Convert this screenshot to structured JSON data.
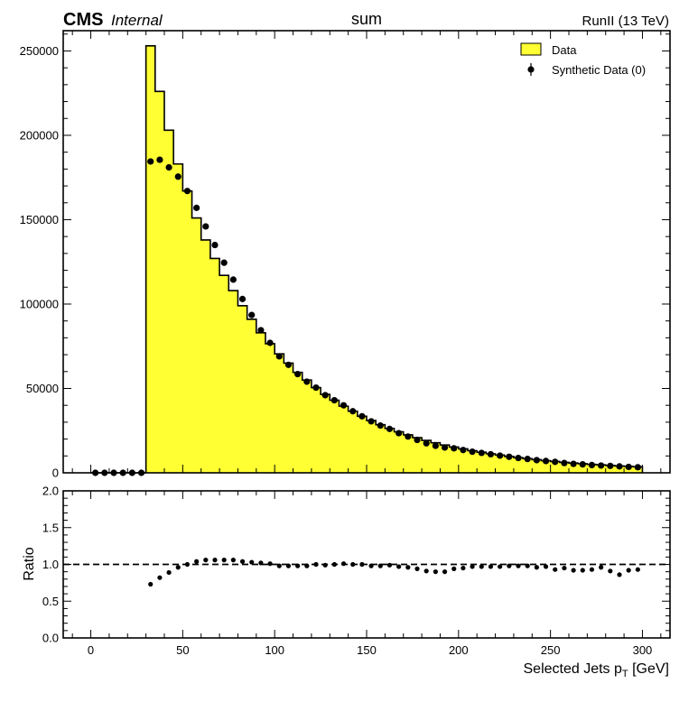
{
  "header": {
    "cms_label": "CMS",
    "cms_sublabel": "Internal",
    "title": "sum",
    "lumi_label": "RunII (13 TeV)"
  },
  "chart_data": {
    "type": "histogram",
    "bin_width": 5,
    "x_range": [
      -15,
      315
    ],
    "x_ticks": [
      0,
      50,
      100,
      150,
      200,
      250,
      300
    ],
    "xlabel_main": "Selected Jets p",
    "xlabel_sub": "T",
    "xlabel_unit": " [GeV]",
    "top_panel": {
      "ylim": [
        0,
        262000
      ],
      "y_ticks": [
        0,
        50000,
        100000,
        150000,
        200000,
        250000
      ],
      "series": [
        {
          "name": "Data",
          "style": "filled step histogram",
          "fill_color": "#ffff33",
          "edge_color": "#000000",
          "bin_low_edges": [
            0,
            5,
            10,
            15,
            20,
            25,
            30,
            35,
            40,
            45,
            50,
            55,
            60,
            65,
            70,
            75,
            80,
            85,
            90,
            95,
            100,
            105,
            110,
            115,
            120,
            125,
            130,
            135,
            140,
            145,
            150,
            155,
            160,
            165,
            170,
            175,
            180,
            185,
            190,
            195,
            200,
            205,
            210,
            215,
            220,
            225,
            230,
            235,
            240,
            245,
            250,
            255,
            260,
            265,
            270,
            275,
            280,
            285,
            290,
            295
          ],
          "values": [
            0,
            0,
            0,
            0,
            0,
            0,
            253000,
            226000,
            203000,
            183000,
            167000,
            151000,
            138000,
            127000,
            117000,
            108000,
            99000,
            91000,
            83000,
            76500,
            70500,
            65000,
            59500,
            55000,
            50500,
            46500,
            43000,
            39500,
            36500,
            33500,
            31000,
            28500,
            26300,
            24300,
            22500,
            20800,
            19200,
            17800,
            16500,
            15300,
            14200,
            13100,
            12200,
            11300,
            10500,
            9700,
            9000,
            8400,
            7800,
            7200,
            6700,
            6200,
            5800,
            5400,
            5000,
            4700,
            4350,
            4050,
            3800,
            3550
          ]
        },
        {
          "name": "Synthetic Data (0)",
          "style": "markers with error bars",
          "marker_color": "#000000",
          "x_centers": [
            2.5,
            7.5,
            12.5,
            17.5,
            22.5,
            27.5,
            32.5,
            37.5,
            42.5,
            47.5,
            52.5,
            57.5,
            62.5,
            67.5,
            72.5,
            77.5,
            82.5,
            87.5,
            92.5,
            97.5,
            102.5,
            107.5,
            112.5,
            117.5,
            122.5,
            127.5,
            132.5,
            137.5,
            142.5,
            147.5,
            152.5,
            157.5,
            162.5,
            167.5,
            172.5,
            177.5,
            182.5,
            187.5,
            192.5,
            197.5,
            202.5,
            207.5,
            212.5,
            217.5,
            222.5,
            227.5,
            232.5,
            237.5,
            242.5,
            247.5,
            252.5,
            257.5,
            262.5,
            267.5,
            272.5,
            277.5,
            282.5,
            287.5,
            292.5,
            297.5
          ],
          "values": [
            0,
            0,
            0,
            0,
            0,
            0,
            184500,
            185500,
            181000,
            175500,
            167000,
            157000,
            146000,
            135000,
            124500,
            114500,
            103000,
            93500,
            84500,
            77000,
            69000,
            64000,
            58500,
            54000,
            50500,
            46000,
            43000,
            40000,
            36500,
            33500,
            30500,
            28000,
            26000,
            23500,
            21500,
            19500,
            17500,
            16000,
            15000,
            14500,
            13500,
            12500,
            11800,
            11000,
            10200,
            9500,
            8800,
            8200,
            7500,
            7000,
            6500,
            5800,
            5300,
            5000,
            4600,
            4300,
            4100,
            3800,
            3500,
            3300
          ]
        }
      ],
      "legend_position": "top-right"
    },
    "ratio_panel": {
      "ylabel": "Ratio",
      "ylim": [
        0,
        2
      ],
      "y_ticks": [
        "0.0",
        "0.5",
        "1.0",
        "1.5",
        "2.0"
      ],
      "reference_line": 1.0,
      "x_centers": [
        32.5,
        37.5,
        42.5,
        47.5,
        52.5,
        57.5,
        62.5,
        67.5,
        72.5,
        77.5,
        82.5,
        87.5,
        92.5,
        97.5,
        102.5,
        107.5,
        112.5,
        117.5,
        122.5,
        127.5,
        132.5,
        137.5,
        142.5,
        147.5,
        152.5,
        157.5,
        162.5,
        167.5,
        172.5,
        177.5,
        182.5,
        187.5,
        192.5,
        197.5,
        202.5,
        207.5,
        212.5,
        217.5,
        222.5,
        227.5,
        232.5,
        237.5,
        242.5,
        247.5,
        252.5,
        257.5,
        262.5,
        267.5,
        272.5,
        277.5,
        282.5,
        287.5,
        292.5,
        297.5
      ],
      "values": [
        0.73,
        0.82,
        0.89,
        0.96,
        1.0,
        1.04,
        1.06,
        1.06,
        1.06,
        1.06,
        1.04,
        1.03,
        1.02,
        1.01,
        0.98,
        0.98,
        0.98,
        0.98,
        1.0,
        0.99,
        1.0,
        1.01,
        1.0,
        1.0,
        0.98,
        0.98,
        0.99,
        0.97,
        0.96,
        0.94,
        0.91,
        0.9,
        0.9,
        0.94,
        0.95,
        0.97,
        0.97,
        0.97,
        0.97,
        0.98,
        0.98,
        0.98,
        0.96,
        0.97,
        0.93,
        0.95,
        0.92,
        0.92,
        0.93,
        0.96,
        0.91,
        0.86,
        0.92,
        0.93
      ]
    }
  }
}
